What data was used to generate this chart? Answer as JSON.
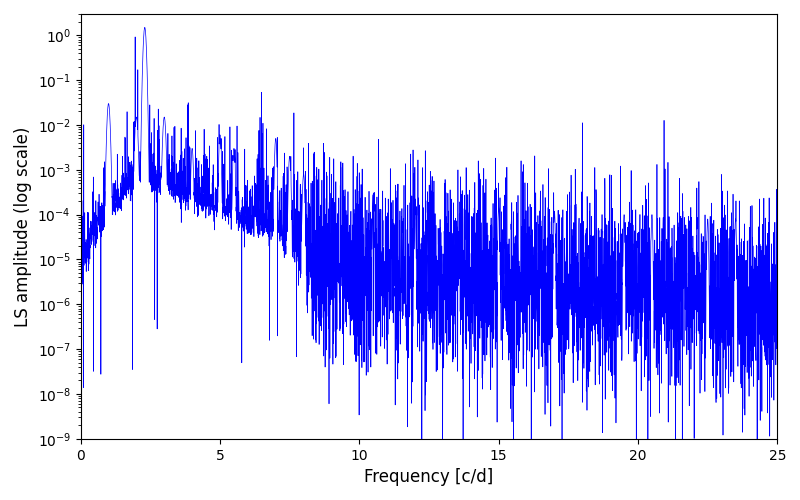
{
  "xlabel": "Frequency [c/d]",
  "ylabel": "LS amplitude (log scale)",
  "line_color": "#0000ff",
  "xlim": [
    0,
    25
  ],
  "ylim": [
    1e-09,
    3.0
  ],
  "background_color": "#ffffff",
  "figsize": [
    8.0,
    5.0
  ],
  "dpi": 100,
  "seed": 12345,
  "n_points": 5000,
  "freq_max": 25.0
}
